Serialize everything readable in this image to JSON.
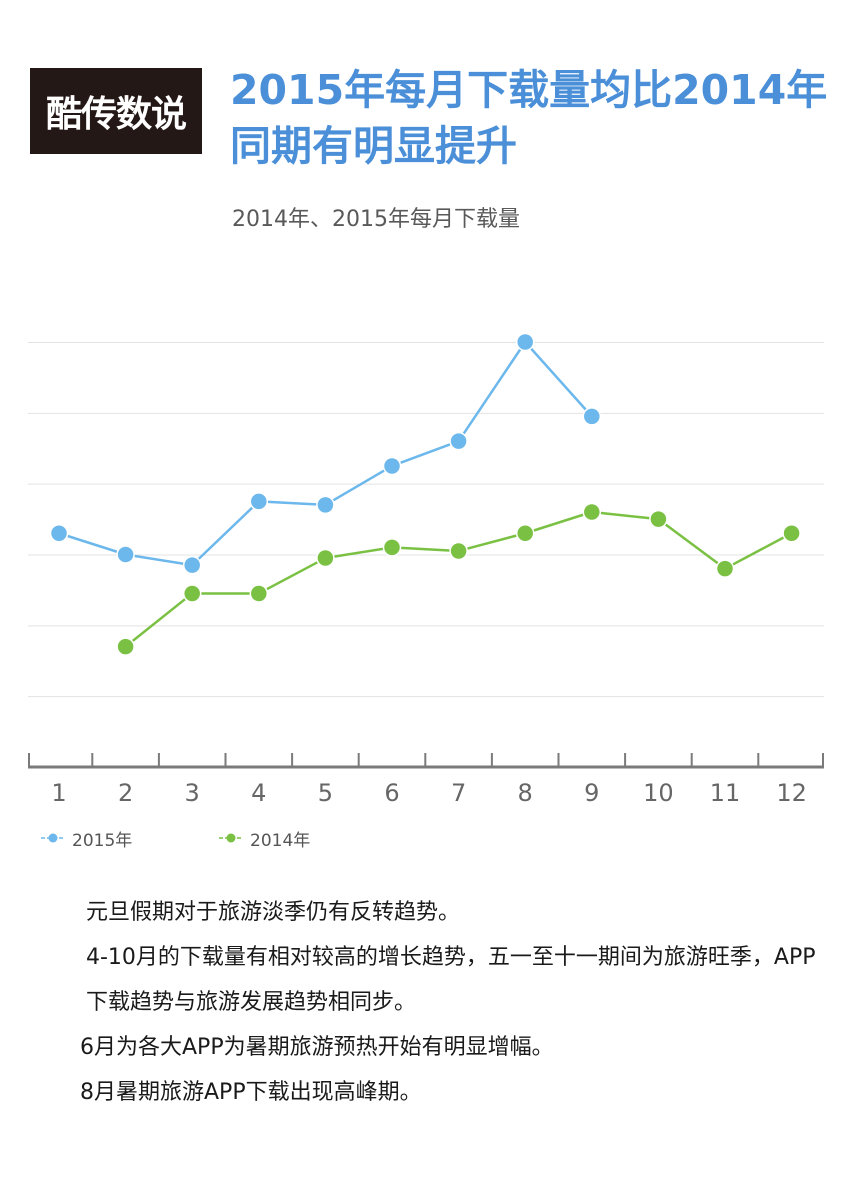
{
  "logo": {
    "text": "酷传数说"
  },
  "title": "2015年每月下载量均比2014年同期有明显提升",
  "subtitle": "2014年、2015年每月下载量",
  "colors": {
    "title": "#4a8fd8",
    "series_2015": "#6cb8ec",
    "series_2014": "#7ac143",
    "axis": "#7a7a7a",
    "grid": "#e3e3e3"
  },
  "legend": [
    {
      "name": "2015年",
      "icon": "line-dot-icon",
      "color": "#6cb8ec"
    },
    {
      "name": "2014年",
      "icon": "line-dot-icon",
      "color": "#7ac143"
    }
  ],
  "paragraphs": [
    "元旦假期对于旅游淡季仍有反转趋势。",
    "4-10月的下载量有相对较高的增长趋势，五一至十一期间为旅游旺季，APP下载趋势与旅游发展趋势相同步。",
    "6月为各大APP为暑期旅游预热开始有明显增幅。",
    "8月暑期旅游APP下载出现高峰期。"
  ],
  "chart_data": {
    "type": "line",
    "title": "2014年、2015年每月下载量",
    "categories": [
      "1",
      "2",
      "3",
      "4",
      "5",
      "6",
      "7",
      "8",
      "9",
      "10",
      "11",
      "12"
    ],
    "x": [
      1,
      2,
      3,
      4,
      5,
      6,
      7,
      8,
      9,
      10,
      11,
      12
    ],
    "series": [
      {
        "name": "2015年",
        "color": "#6cb8ec",
        "values": [
          3.3,
          3.0,
          2.85,
          3.75,
          3.7,
          4.25,
          4.6,
          6.0,
          4.95,
          null,
          null,
          null
        ]
      },
      {
        "name": "2014年",
        "color": "#7ac143",
        "values": [
          null,
          1.7,
          2.45,
          2.45,
          2.95,
          3.1,
          3.05,
          3.3,
          3.6,
          3.5,
          2.8,
          3.3
        ]
      }
    ],
    "xlabel": "",
    "ylabel": "",
    "ylim": [
      0,
      6
    ],
    "y_tick_labels": false,
    "grid": true,
    "legend_position": "bottom-left"
  }
}
